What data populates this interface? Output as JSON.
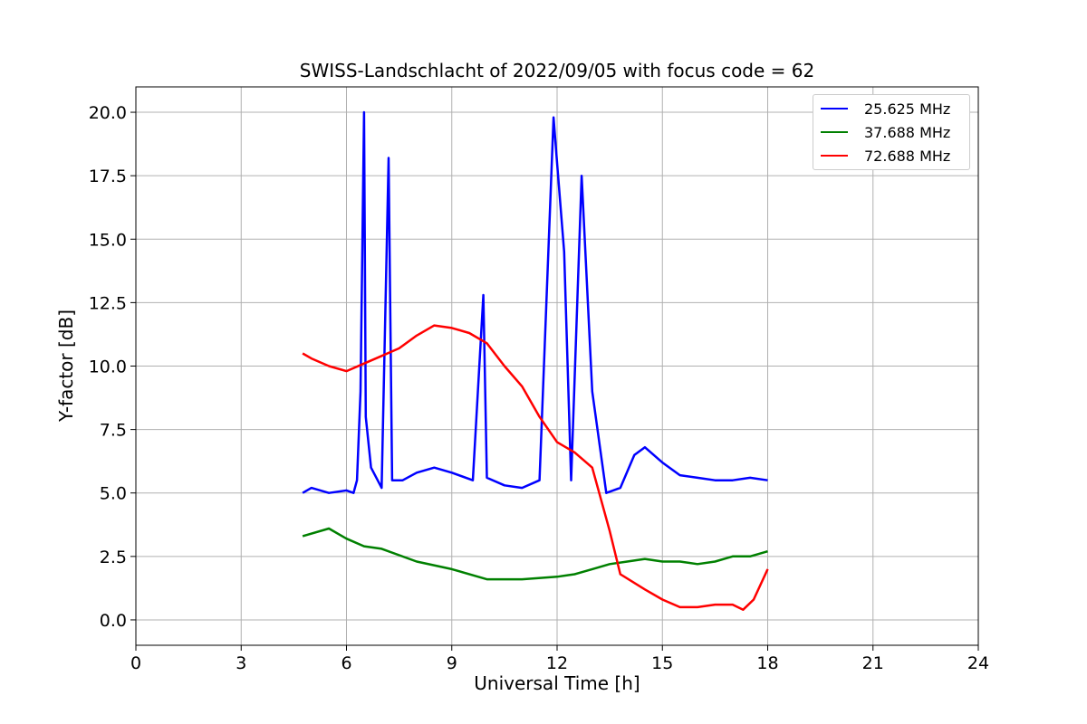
{
  "chart_data": {
    "type": "line",
    "title": "SWISS-Landschlacht of 2022/09/05 with focus code = 62",
    "xlabel": "Universal Time [h]",
    "ylabel": "Y-factor [dB]",
    "xlim": [
      0,
      24
    ],
    "ylim": [
      -1.0,
      21.0
    ],
    "xticks": [
      0,
      3,
      6,
      9,
      12,
      15,
      18,
      21,
      24
    ],
    "xtick_labels": [
      "0",
      "3",
      "6",
      "9",
      "12",
      "15",
      "18",
      "21",
      "24"
    ],
    "yticks": [
      0.0,
      2.5,
      5.0,
      7.5,
      10.0,
      12.5,
      15.0,
      17.5,
      20.0
    ],
    "ytick_labels": [
      "0.0",
      "2.5",
      "5.0",
      "7.5",
      "10.0",
      "12.5",
      "15.0",
      "17.5",
      "20.0"
    ],
    "grid": true,
    "legend_position": "top-right",
    "series": [
      {
        "name": "25.625 MHz",
        "color": "#0000ff",
        "points": [
          [
            4.75,
            5.0
          ],
          [
            5.0,
            5.2
          ],
          [
            5.5,
            5.0
          ],
          [
            6.0,
            5.1
          ],
          [
            6.2,
            5.0
          ],
          [
            6.3,
            5.5
          ],
          [
            6.4,
            9.0
          ],
          [
            6.5,
            20.0
          ],
          [
            6.55,
            8.0
          ],
          [
            6.7,
            6.0
          ],
          [
            7.0,
            5.2
          ],
          [
            7.2,
            18.2
          ],
          [
            7.3,
            5.5
          ],
          [
            7.6,
            5.5
          ],
          [
            8.0,
            5.8
          ],
          [
            8.5,
            6.0
          ],
          [
            9.0,
            5.8
          ],
          [
            9.6,
            5.5
          ],
          [
            9.9,
            12.8
          ],
          [
            10.0,
            5.6
          ],
          [
            10.5,
            5.3
          ],
          [
            11.0,
            5.2
          ],
          [
            11.5,
            5.5
          ],
          [
            11.9,
            19.8
          ],
          [
            12.0,
            18.0
          ],
          [
            12.2,
            14.5
          ],
          [
            12.4,
            5.5
          ],
          [
            12.7,
            17.5
          ],
          [
            13.0,
            9.0
          ],
          [
            13.4,
            5.0
          ],
          [
            13.8,
            5.2
          ],
          [
            14.2,
            6.5
          ],
          [
            14.5,
            6.8
          ],
          [
            15.0,
            6.2
          ],
          [
            15.5,
            5.7
          ],
          [
            16.0,
            5.6
          ],
          [
            16.5,
            5.5
          ],
          [
            17.0,
            5.5
          ],
          [
            17.5,
            5.6
          ],
          [
            18.0,
            5.5
          ]
        ]
      },
      {
        "name": "37.688 MHz",
        "color": "#008000",
        "points": [
          [
            4.75,
            3.3
          ],
          [
            5.5,
            3.6
          ],
          [
            6.0,
            3.2
          ],
          [
            6.5,
            2.9
          ],
          [
            7.0,
            2.8
          ],
          [
            8.0,
            2.3
          ],
          [
            9.0,
            2.0
          ],
          [
            10.0,
            1.6
          ],
          [
            11.0,
            1.6
          ],
          [
            12.0,
            1.7
          ],
          [
            12.5,
            1.8
          ],
          [
            13.0,
            2.0
          ],
          [
            13.5,
            2.2
          ],
          [
            14.0,
            2.3
          ],
          [
            14.5,
            2.4
          ],
          [
            15.0,
            2.3
          ],
          [
            15.5,
            2.3
          ],
          [
            16.0,
            2.2
          ],
          [
            16.5,
            2.3
          ],
          [
            17.0,
            2.5
          ],
          [
            17.5,
            2.5
          ],
          [
            18.0,
            2.7
          ]
        ]
      },
      {
        "name": "72.688 MHz",
        "color": "#ff0000",
        "points": [
          [
            4.75,
            10.5
          ],
          [
            5.0,
            10.3
          ],
          [
            5.5,
            10.0
          ],
          [
            6.0,
            9.8
          ],
          [
            6.5,
            10.1
          ],
          [
            7.0,
            10.4
          ],
          [
            7.5,
            10.7
          ],
          [
            8.0,
            11.2
          ],
          [
            8.5,
            11.6
          ],
          [
            9.0,
            11.5
          ],
          [
            9.5,
            11.3
          ],
          [
            10.0,
            10.9
          ],
          [
            10.5,
            10.0
          ],
          [
            11.0,
            9.2
          ],
          [
            11.5,
            8.0
          ],
          [
            12.0,
            7.0
          ],
          [
            12.5,
            6.6
          ],
          [
            13.0,
            6.0
          ],
          [
            13.5,
            3.5
          ],
          [
            13.8,
            1.8
          ],
          [
            14.5,
            1.2
          ],
          [
            15.0,
            0.8
          ],
          [
            15.5,
            0.5
          ],
          [
            16.0,
            0.5
          ],
          [
            16.5,
            0.6
          ],
          [
            17.0,
            0.6
          ],
          [
            17.3,
            0.4
          ],
          [
            17.6,
            0.8
          ],
          [
            18.0,
            2.0
          ]
        ]
      }
    ]
  }
}
